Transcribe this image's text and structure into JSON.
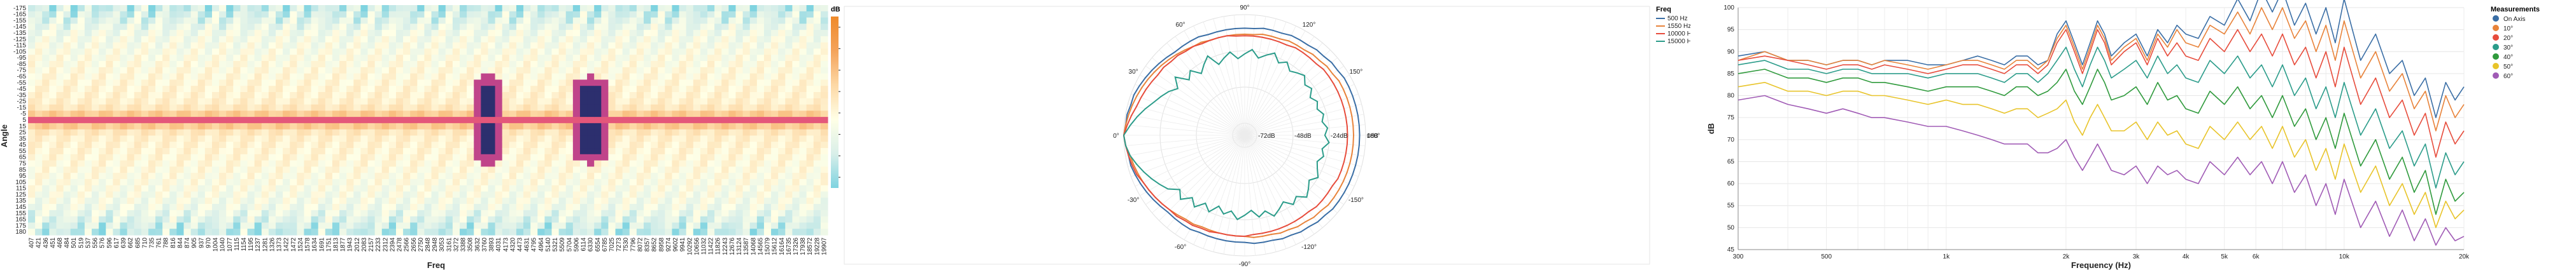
{
  "chart_data": [
    {
      "type": "heatmap",
      "xlabel": "Freq",
      "ylabel": "Angle",
      "legend_title": "dB",
      "color_ticks": [
        "2",
        "0",
        "-2",
        "-4",
        "-6",
        "-8",
        "-10",
        "-12"
      ],
      "color_range": [
        -13,
        3
      ],
      "color_stops": [
        "#7ed3e0",
        "#d9efe9",
        "#ffffe6",
        "#fdd8a5",
        "#f4a35a",
        "#ef8a2a"
      ],
      "y_ticks": [
        "-175",
        "-165",
        "-155",
        "-145",
        "-135",
        "-125",
        "-115",
        "-105",
        "-95",
        "-85",
        "-75",
        "-65",
        "-55",
        "-45",
        "-35",
        "-25",
        "-15",
        "-5",
        "5",
        "15",
        "25",
        "35",
        "45",
        "55",
        "65",
        "75",
        "85",
        "95",
        "105",
        "115",
        "125",
        "135",
        "145",
        "155",
        "165",
        "175",
        "180"
      ],
      "x_ticks": [
        "407",
        "421",
        "436",
        "451",
        "468",
        "484",
        "501",
        "519",
        "537",
        "556",
        "576",
        "596",
        "617",
        "639",
        "662",
        "685",
        "710",
        "735",
        "761",
        "788",
        "816",
        "844",
        "874",
        "905",
        "937",
        "970",
        "1004",
        "1040",
        "1077",
        "1115",
        "1154",
        "1195",
        "1237",
        "1281",
        "1326",
        "1373",
        "1422",
        "1472",
        "1524",
        "1578",
        "1634",
        "1691",
        "1751",
        "1813",
        "1877",
        "1943",
        "2012",
        "2083",
        "2157",
        "2233",
        "2312",
        "2394",
        "2478",
        "2566",
        "2656",
        "2750",
        "2848",
        "2948",
        "3053",
        "3161",
        "3272",
        "3388",
        "3508",
        "3632",
        "3760",
        "3893",
        "4031",
        "4173",
        "4320",
        "4473",
        "4631",
        "4795",
        "4964",
        "5140",
        "5321",
        "5509",
        "5704",
        "5906",
        "6114",
        "6330",
        "6554",
        "6785",
        "7025",
        "7273",
        "7530",
        "7796",
        "8072",
        "8357",
        "8652",
        "8958",
        "9274",
        "9602",
        "9941",
        "10292",
        "10656",
        "11032",
        "11422",
        "11826",
        "12243",
        "12676",
        "13124",
        "13587",
        "14068",
        "14565",
        "15079",
        "15612",
        "16164",
        "16735",
        "17326",
        "17938",
        "18572",
        "19228",
        "19907"
      ]
    },
    {
      "type": "polar",
      "legend_title": "Freq",
      "angle_labels": [
        "0°",
        "30°",
        "60°",
        "90°",
        "120°",
        "150°",
        "180°",
        "-150°",
        "-120°",
        "-90°",
        "-60°",
        "-30°"
      ],
      "radial_labels": [
        "0dB",
        "-24dB",
        "-48dB",
        "-72dB"
      ],
      "radial_range_db": [
        -80,
        0
      ],
      "series": [
        {
          "name": "500 Hz",
          "color": "#3a6ea5",
          "r_db": [
            0,
            -1,
            -1,
            -2,
            -2,
            -3,
            -4,
            -5,
            -6,
            -7,
            -8,
            -8,
            -8,
            -8,
            -9,
            -9,
            -9,
            -9,
            -9,
            -9,
            -8,
            -8,
            -8,
            -7,
            -7,
            -7,
            -6,
            -6,
            -5,
            -5,
            -4,
            -4,
            -4,
            -4,
            -4,
            -4,
            -4,
            -4,
            -4,
            -4,
            -4,
            -4,
            -4,
            -4,
            -4,
            -5,
            -5,
            -6,
            -6,
            -7,
            -7,
            -8,
            -8,
            -8,
            -9,
            -9,
            -9,
            -9,
            -9,
            -9,
            -8,
            -8,
            -8,
            -8,
            -7,
            -6,
            -5,
            -4,
            -3,
            -2,
            -2,
            -1
          ]
        },
        {
          "name": "1550 Hz",
          "color": "#e8833a",
          "r_db": [
            0,
            -1,
            -2,
            -3,
            -4,
            -5,
            -6,
            -7,
            -8,
            -9,
            -10,
            -11,
            -12,
            -12,
            -13,
            -13,
            -13,
            -13,
            -13,
            -13,
            -12,
            -12,
            -12,
            -11,
            -11,
            -11,
            -10,
            -10,
            -9,
            -9,
            -8,
            -8,
            -8,
            -8,
            -8,
            -8,
            -8,
            -8,
            -8,
            -8,
            -8,
            -8,
            -8,
            -8,
            -8,
            -9,
            -9,
            -10,
            -10,
            -11,
            -11,
            -12,
            -12,
            -12,
            -13,
            -13,
            -13,
            -13,
            -13,
            -13,
            -12,
            -12,
            -11,
            -10,
            -9,
            -8,
            -7,
            -6,
            -5,
            -4,
            -3,
            -1
          ]
        },
        {
          "name": "10000 Hz",
          "color": "#e74c3c",
          "r_db": [
            0,
            -2,
            -4,
            -6,
            -7,
            -8,
            -9,
            -10,
            -10,
            -11,
            -11,
            -12,
            -12,
            -13,
            -13,
            -13,
            -13,
            -14,
            -14,
            -14,
            -14,
            -14,
            -14,
            -14,
            -13,
            -13,
            -13,
            -13,
            -12,
            -12,
            -12,
            -12,
            -12,
            -12,
            -12,
            -12,
            -12,
            -12,
            -12,
            -12,
            -12,
            -12,
            -13,
            -13,
            -13,
            -13,
            -14,
            -14,
            -14,
            -14,
            -14,
            -14,
            -14,
            -14,
            -13,
            -13,
            -13,
            -13,
            -12,
            -12,
            -11,
            -11,
            -10,
            -10,
            -9,
            -8,
            -7,
            -6,
            -4,
            -3,
            -2,
            -1
          ]
        },
        {
          "name": "15000 Hz",
          "color": "#2b9c8a",
          "r_db": [
            0,
            -4,
            -8,
            -12,
            -16,
            -19,
            -22,
            -26,
            -20,
            -28,
            -24,
            -30,
            -26,
            -22,
            -30,
            -27,
            -24,
            -29,
            -26,
            -23,
            -28,
            -25,
            -22,
            -27,
            -24,
            -28,
            -26,
            -24,
            -28,
            -26,
            -30,
            -27,
            -29,
            -26,
            -28,
            -25,
            -27,
            -24,
            -28,
            -26,
            -29,
            -27,
            -24,
            -28,
            -25,
            -22,
            -27,
            -24,
            -29,
            -26,
            -23,
            -28,
            -25,
            -30,
            -27,
            -24,
            -29,
            -26,
            -30,
            -24,
            -28,
            -22,
            -26,
            -20,
            -24,
            -18,
            -15,
            -12,
            -9,
            -6,
            -3,
            -1
          ]
        }
      ]
    },
    {
      "type": "line",
      "xlabel": "Frequency (Hz)",
      "ylabel": "dB",
      "xscale": "log",
      "xlim": [
        300,
        20000
      ],
      "ylim": [
        45,
        100
      ],
      "x_tick_labels": [
        {
          "v": 300,
          "t": "300"
        },
        {
          "v": 500,
          "t": "500"
        },
        {
          "v": 1000,
          "t": "1k"
        },
        {
          "v": 2000,
          "t": "2k"
        },
        {
          "v": 3000,
          "t": "3k"
        },
        {
          "v": 4000,
          "t": "4k"
        },
        {
          "v": 5000,
          "t": "5k"
        },
        {
          "v": 6000,
          "t": "6k"
        },
        {
          "v": 10000,
          "t": "10k"
        },
        {
          "v": 20000,
          "t": "20k"
        }
      ],
      "y_ticks": [
        45,
        50,
        55,
        60,
        65,
        70,
        75,
        80,
        85,
        90,
        95,
        100
      ],
      "legend_title": "Measurements",
      "x": [
        300,
        350,
        400,
        450,
        500,
        550,
        600,
        650,
        700,
        800,
        900,
        1000,
        1100,
        1200,
        1300,
        1400,
        1500,
        1600,
        1700,
        1800,
        1900,
        2000,
        2100,
        2200,
        2300,
        2400,
        2500,
        2600,
        2800,
        3000,
        3200,
        3400,
        3600,
        3800,
        4000,
        4300,
        4600,
        5000,
        5400,
        5800,
        6200,
        6600,
        7000,
        7500,
        8000,
        8500,
        9000,
        9500,
        10000,
        11000,
        12000,
        13000,
        14000,
        15000,
        16000,
        17000,
        18000,
        19000,
        20000
      ],
      "series": [
        {
          "name": "On Axis",
          "color": "#3a6ea5",
          "values": [
            89,
            90,
            88,
            88,
            87,
            88,
            88,
            87,
            88,
            88,
            87,
            87,
            88,
            89,
            88,
            87,
            89,
            89,
            87,
            88,
            94,
            97,
            92,
            87,
            92,
            97,
            94,
            89,
            92,
            94,
            89,
            95,
            92,
            96,
            94,
            93,
            98,
            96,
            102,
            97,
            104,
            99,
            104,
            96,
            101,
            94,
            100,
            92,
            102,
            88,
            94,
            85,
            88,
            80,
            84,
            75,
            83,
            79,
            82
          ]
        },
        {
          "name": "10°",
          "color": "#e8833a",
          "values": [
            88,
            90,
            88,
            88,
            87,
            88,
            88,
            87,
            88,
            87,
            86,
            87,
            88,
            88,
            87,
            86,
            88,
            88,
            86,
            88,
            93,
            96,
            91,
            86,
            91,
            96,
            93,
            88,
            91,
            93,
            88,
            94,
            91,
            95,
            92,
            91,
            96,
            94,
            99,
            94,
            100,
            95,
            100,
            93,
            97,
            90,
            96,
            88,
            97,
            84,
            90,
            81,
            85,
            77,
            81,
            72,
            80,
            75,
            78
          ]
        },
        {
          "name": "20°",
          "color": "#e74c3c",
          "values": [
            88,
            89,
            88,
            87,
            86,
            87,
            87,
            86,
            87,
            86,
            85,
            86,
            87,
            87,
            86,
            85,
            87,
            87,
            85,
            87,
            92,
            95,
            90,
            85,
            90,
            95,
            92,
            87,
            90,
            92,
            87,
            93,
            89,
            92,
            89,
            88,
            93,
            90,
            95,
            90,
            94,
            89,
            94,
            87,
            91,
            84,
            90,
            82,
            91,
            78,
            84,
            75,
            79,
            71,
            76,
            66,
            74,
            69,
            72
          ]
        },
        {
          "name": "30°",
          "color": "#2b9c8a",
          "values": [
            87,
            88,
            86,
            86,
            85,
            86,
            86,
            85,
            85,
            85,
            84,
            85,
            85,
            85,
            84,
            83,
            85,
            85,
            83,
            85,
            88,
            91,
            86,
            82,
            87,
            91,
            88,
            84,
            86,
            88,
            84,
            89,
            85,
            87,
            84,
            83,
            88,
            85,
            89,
            84,
            87,
            82,
            87,
            80,
            84,
            77,
            82,
            75,
            83,
            71,
            77,
            68,
            72,
            64,
            69,
            59,
            67,
            62,
            65
          ]
        },
        {
          "name": "40°",
          "color": "#2f9a3c",
          "values": [
            85,
            86,
            84,
            84,
            83,
            84,
            84,
            83,
            83,
            82,
            81,
            82,
            82,
            82,
            81,
            80,
            82,
            82,
            80,
            81,
            83,
            86,
            81,
            78,
            82,
            86,
            83,
            79,
            80,
            82,
            78,
            83,
            79,
            80,
            77,
            76,
            81,
            78,
            82,
            77,
            80,
            75,
            80,
            73,
            77,
            70,
            75,
            68,
            76,
            64,
            70,
            61,
            66,
            58,
            63,
            53,
            61,
            56,
            58
          ]
        },
        {
          "name": "50°",
          "color": "#e8c42a",
          "values": [
            82,
            83,
            81,
            81,
            80,
            81,
            81,
            80,
            80,
            79,
            78,
            79,
            78,
            78,
            77,
            76,
            77,
            77,
            75,
            76,
            77,
            79,
            74,
            71,
            75,
            78,
            75,
            72,
            72,
            74,
            70,
            74,
            71,
            72,
            69,
            68,
            73,
            70,
            74,
            70,
            73,
            68,
            73,
            66,
            70,
            63,
            68,
            61,
            69,
            58,
            64,
            55,
            60,
            53,
            58,
            50,
            56,
            52,
            54
          ]
        },
        {
          "name": "60°",
          "color": "#a05bb5",
          "values": [
            79,
            80,
            78,
            77,
            76,
            77,
            76,
            75,
            75,
            74,
            73,
            73,
            72,
            71,
            70,
            69,
            69,
            69,
            67,
            67,
            68,
            70,
            66,
            63,
            66,
            69,
            66,
            63,
            62,
            64,
            60,
            64,
            62,
            63,
            61,
            60,
            65,
            62,
            66,
            62,
            65,
            60,
            65,
            58,
            62,
            55,
            60,
            53,
            61,
            50,
            56,
            48,
            54,
            47,
            52,
            46,
            50,
            47,
            48
          ]
        }
      ]
    }
  ]
}
